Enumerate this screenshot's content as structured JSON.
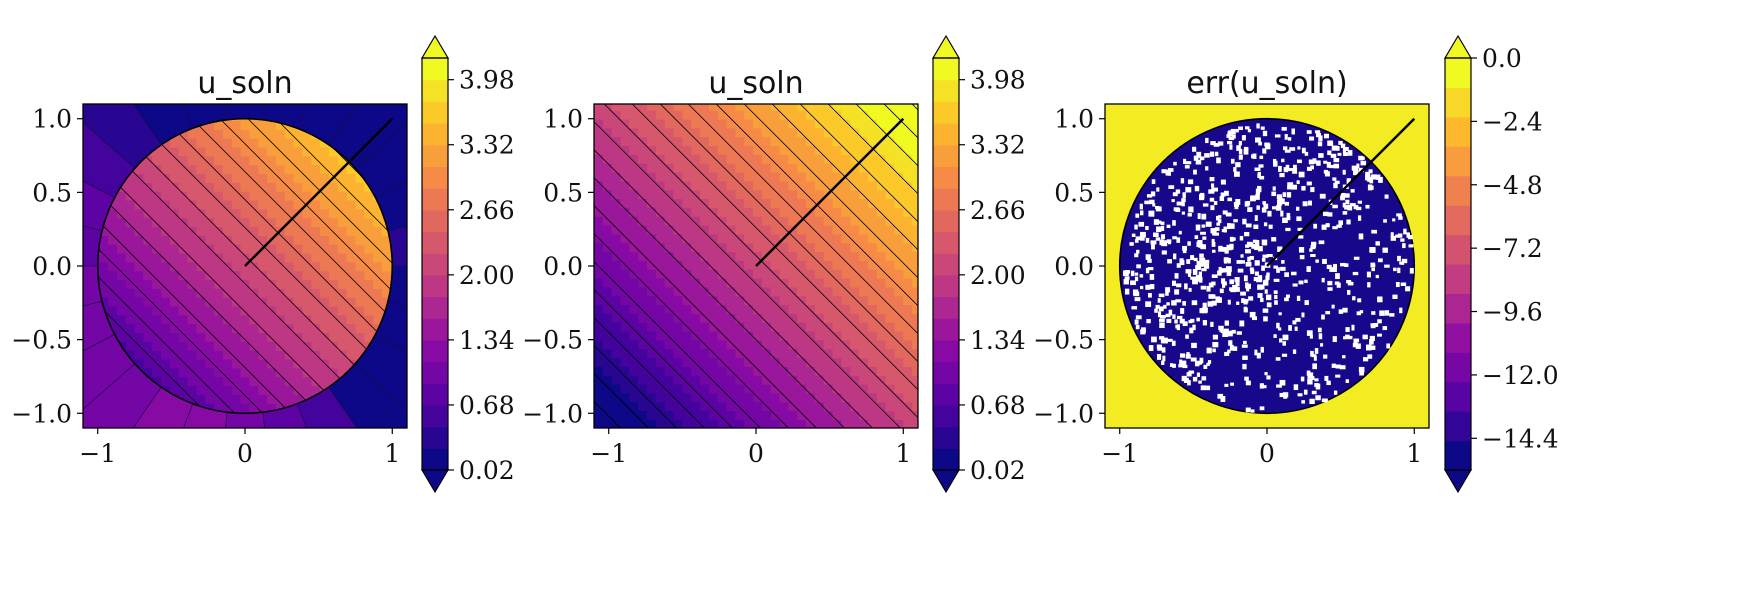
{
  "chart_data": [
    {
      "type": "heatmap",
      "title": "u_soln",
      "xlim": [
        -1.1,
        1.1
      ],
      "ylim": [
        -1.1,
        1.1
      ],
      "xticks": [
        -1,
        0,
        1
      ],
      "xtick_labels": [
        "−1",
        "0",
        "1"
      ],
      "yticks": [
        1.0,
        0.5,
        0.0,
        -0.5,
        -1.0
      ],
      "ytick_labels": [
        "1.0",
        "0.5",
        "0.0",
        "−0.5",
        "−1.0"
      ],
      "field": "solution inside the unit disk, constant per angular sector outside",
      "disk_radius": 1.0,
      "line": {
        "x": [
          0,
          1
        ],
        "y": [
          0,
          1
        ]
      },
      "colorbar": {
        "colormap": "plasma",
        "min": 0.02,
        "max": 4.2,
        "levels": 19,
        "extend": "both",
        "ticks": [
          3.98,
          3.32,
          2.66,
          2.0,
          1.34,
          0.68,
          0.02
        ],
        "tick_labels": [
          "3.98",
          "3.32",
          "2.66",
          "2.00",
          "1.34",
          "0.68",
          "0.02"
        ]
      }
    },
    {
      "type": "heatmap",
      "title": "u_soln",
      "xlim": [
        -1.1,
        1.1
      ],
      "ylim": [
        -1.1,
        1.1
      ],
      "xticks": [
        -1,
        0,
        1
      ],
      "xtick_labels": [
        "−1",
        "0",
        "1"
      ],
      "yticks": [
        1.0,
        0.5,
        0.0,
        -0.5,
        -1.0
      ],
      "ytick_labels": [
        "1.0",
        "0.5",
        "0.0",
        "−0.5",
        "−1.0"
      ],
      "field": "linear in x + y",
      "line": {
        "x": [
          0,
          1
        ],
        "y": [
          0,
          1
        ]
      },
      "colorbar": {
        "colormap": "plasma",
        "min": 0.02,
        "max": 4.2,
        "levels": 19,
        "extend": "both",
        "ticks": [
          3.98,
          3.32,
          2.66,
          2.0,
          1.34,
          0.68,
          0.02
        ],
        "tick_labels": [
          "3.98",
          "3.32",
          "2.66",
          "2.00",
          "1.34",
          "0.68",
          "0.02"
        ]
      }
    },
    {
      "type": "heatmap",
      "title": "err(u_soln)",
      "xlim": [
        -1.1,
        1.1
      ],
      "ylim": [
        -1.1,
        1.1
      ],
      "xticks": [
        -1,
        0,
        1
      ],
      "xtick_labels": [
        "−1",
        "0",
        "1"
      ],
      "yticks": [
        1.0,
        0.5,
        0.0,
        -0.5,
        -1.0
      ],
      "ytick_labels": [
        "1.0",
        "0.5",
        "0.0",
        "−0.5",
        "−1.0"
      ],
      "field": "log error: near 0 outside the unit disk, about -15 inside with white gaps",
      "disk_radius": 1.0,
      "line": {
        "x": [
          0,
          1
        ],
        "y": [
          0,
          1
        ]
      },
      "colorbar": {
        "colormap": "plasma",
        "min": -15.6,
        "max": 0.0,
        "levels": 14,
        "extend": "both",
        "ticks": [
          0.0,
          -2.4,
          -4.8,
          -7.2,
          -9.6,
          -12.0,
          -14.4
        ],
        "tick_labels": [
          "0.0",
          "−2.4",
          "−4.8",
          "−7.2",
          "−9.6",
          "−12.0",
          "−14.4"
        ]
      }
    }
  ]
}
